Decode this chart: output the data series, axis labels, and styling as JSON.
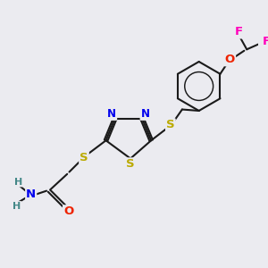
{
  "bg_color": "#ebebf0",
  "bond_color": "#1a1a1a",
  "bond_width": 1.5,
  "atom_colors": {
    "N": "#0000ee",
    "O": "#ee2200",
    "S": "#bbaa00",
    "F": "#ff00bb",
    "H": "#448888",
    "C": "#1a1a1a"
  },
  "font_size": 8.5,
  "bg_hex": "#ebebf0"
}
